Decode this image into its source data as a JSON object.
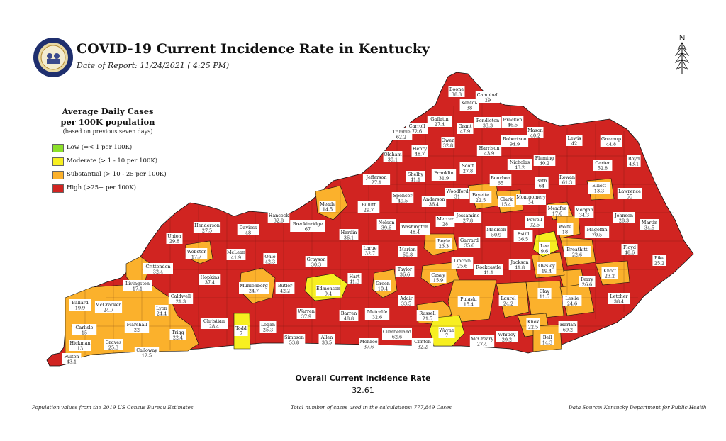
{
  "title": "COVID-19 Current Incidence Rate in Kentucky",
  "report_date": "Date of Report: 11/24/2021 ( 4:25 PM)",
  "north_label": "N",
  "legend": {
    "title_line1": "Average Daily Cases",
    "title_line2": "per 100K population",
    "note": "(based on previous seven days)",
    "items": [
      {
        "label": "Low (=< 1 per 100K)",
        "color": "#8ce02a"
      },
      {
        "label": "Moderate (> 1 - 10 per 100K)",
        "color": "#f7ef20"
      },
      {
        "label": "Substantial (> 10 - 25 per 100K)",
        "color": "#fbb12c"
      },
      {
        "label": "High (>25+ per 100K)",
        "color": "#d12421"
      }
    ]
  },
  "overall": {
    "label": "Overall Current Incidence Rate",
    "value": "32.61"
  },
  "footer": {
    "left": "Population values from the 2019 US Census Bureau Estimates",
    "middle": "Total number of cases used in the calculations: 777,849 Cases",
    "right": "Data Source: Kentucky Department for Public Health"
  },
  "counties": [
    {
      "name": "Boone",
      "rate": "38.3"
    },
    {
      "name": "Kenton",
      "rate": "38"
    },
    {
      "name": "Campbell",
      "rate": "29"
    },
    {
      "name": "Gallatin",
      "rate": "27.4"
    },
    {
      "name": "Carroll",
      "rate": "72.6"
    },
    {
      "name": "Trimble",
      "rate": "62.2"
    },
    {
      "name": "Grant",
      "rate": "47.9"
    },
    {
      "name": "Pendleton",
      "rate": "33.3"
    },
    {
      "name": "Bracken",
      "rate": "46.5"
    },
    {
      "name": "Robertson",
      "rate": "94.9"
    },
    {
      "name": "Mason",
      "rate": "40.2"
    },
    {
      "name": "Lewis",
      "rate": "42"
    },
    {
      "name": "Greenup",
      "rate": "44.8"
    },
    {
      "name": "Boyd",
      "rate": "43.1"
    },
    {
      "name": "Owen",
      "rate": "32.8"
    },
    {
      "name": "Henry",
      "rate": "48.7"
    },
    {
      "name": "Oldham",
      "rate": "39.1"
    },
    {
      "name": "Harrison",
      "rate": "43.9"
    },
    {
      "name": "Nicholas",
      "rate": "43.2"
    },
    {
      "name": "Fleming",
      "rate": "40.2"
    },
    {
      "name": "Carter",
      "rate": "52.8"
    },
    {
      "name": "Scott",
      "rate": "27.8"
    },
    {
      "name": "Franklin",
      "rate": "31.9"
    },
    {
      "name": "Shelby",
      "rate": "41.1"
    },
    {
      "name": "Jefferson",
      "rate": "27.1"
    },
    {
      "name": "Bourbon",
      "rate": "65"
    },
    {
      "name": "Bath",
      "rate": "64"
    },
    {
      "name": "Rowan",
      "rate": "61.3"
    },
    {
      "name": "Elliott",
      "rate": "13.3"
    },
    {
      "name": "Lawrence",
      "rate": "55"
    },
    {
      "name": "Woodford",
      "rate": "31"
    },
    {
      "name": "Fayette",
      "rate": "22.5"
    },
    {
      "name": "Anderson",
      "rate": "36.4"
    },
    {
      "name": "Spencer",
      "rate": "49.5"
    },
    {
      "name": "Bullitt",
      "rate": "29.7"
    },
    {
      "name": "Clark",
      "rate": "15.4"
    },
    {
      "name": "Montgomery",
      "rate": "34"
    },
    {
      "name": "Menifee",
      "rate": "17.6"
    },
    {
      "name": "Morgan",
      "rate": "34.3"
    },
    {
      "name": "Johnson",
      "rate": "28.3"
    },
    {
      "name": "Martin",
      "rate": "34.5"
    },
    {
      "name": "Meade",
      "rate": "14.5"
    },
    {
      "name": "Hancock",
      "rate": "32.8"
    },
    {
      "name": "Breckinridge",
      "rate": "67"
    },
    {
      "name": "Henderson",
      "rate": "27.5"
    },
    {
      "name": "Daviess",
      "rate": "48"
    },
    {
      "name": "Hardin",
      "rate": "36.1"
    },
    {
      "name": "Nelson",
      "rate": "39.6"
    },
    {
      "name": "Washington",
      "rate": "48.4"
    },
    {
      "name": "Mercer",
      "rate": "28"
    },
    {
      "name": "Jessamine",
      "rate": "27.8"
    },
    {
      "name": "Madison",
      "rate": "50.9"
    },
    {
      "name": "Powell",
      "rate": "92.5"
    },
    {
      "name": "Estill",
      "rate": "36.5"
    },
    {
      "name": "Wolfe",
      "rate": "18"
    },
    {
      "name": "Magoffin",
      "rate": "70.5"
    },
    {
      "name": "Floyd",
      "rate": "48.6"
    },
    {
      "name": "Pike",
      "rate": "25.2"
    },
    {
      "name": "Union",
      "rate": "29.8"
    },
    {
      "name": "Webster",
      "rate": "17.7"
    },
    {
      "name": "McLean",
      "rate": "41.9"
    },
    {
      "name": "Ohio",
      "rate": "42.3"
    },
    {
      "name": "Grayson",
      "rate": "30.3"
    },
    {
      "name": "Larue",
      "rate": "32.7"
    },
    {
      "name": "Marion",
      "rate": "60.8"
    },
    {
      "name": "Boyle",
      "rate": "23.3"
    },
    {
      "name": "Garrard",
      "rate": "35.6"
    },
    {
      "name": "Lee",
      "rate": "9.6"
    },
    {
      "name": "Breathitt",
      "rate": "22.6"
    },
    {
      "name": "Owsley",
      "rate": "19.4"
    },
    {
      "name": "Jackson",
      "rate": "41.8"
    },
    {
      "name": "Rockcastle",
      "rate": "41.1"
    },
    {
      "name": "Lincoln",
      "rate": "25.6"
    },
    {
      "name": "Knott",
      "rate": "23.2"
    },
    {
      "name": "Perry",
      "rate": "26.6"
    },
    {
      "name": "Crittenden",
      "rate": "32.4"
    },
    {
      "name": "Hopkins",
      "rate": "37.4"
    },
    {
      "name": "Muhlenberg",
      "rate": "24.7"
    },
    {
      "name": "Butler",
      "rate": "42.2"
    },
    {
      "name": "Edmonson",
      "rate": "9.4"
    },
    {
      "name": "Hart",
      "rate": "41.3"
    },
    {
      "name": "Taylor",
      "rate": "36.6"
    },
    {
      "name": "Green",
      "rate": "10.4"
    },
    {
      "name": "Casey",
      "rate": "15.9"
    },
    {
      "name": "Livingston",
      "rate": "17.1"
    },
    {
      "name": "Caldwell",
      "rate": "21.3"
    },
    {
      "name": "Lyon",
      "rate": "24.4"
    },
    {
      "name": "Ballard",
      "rate": "19.9"
    },
    {
      "name": "McCracken",
      "rate": "24.7"
    },
    {
      "name": "Marshall",
      "rate": "22"
    },
    {
      "name": "Carlisle",
      "rate": "15"
    },
    {
      "name": "Hickman",
      "rate": "13"
    },
    {
      "name": "Graves",
      "rate": "25.3"
    },
    {
      "name": "Fulton",
      "rate": "43.1"
    },
    {
      "name": "Calloway",
      "rate": "12.5"
    },
    {
      "name": "Trigg",
      "rate": "22.4"
    },
    {
      "name": "Christian",
      "rate": "28.4"
    },
    {
      "name": "Todd",
      "rate": "7"
    },
    {
      "name": "Logan",
      "rate": "25.3"
    },
    {
      "name": "Simpson",
      "rate": "53.8"
    },
    {
      "name": "Warren",
      "rate": "37.9"
    },
    {
      "name": "Allen",
      "rate": "33.5"
    },
    {
      "name": "Barren",
      "rate": "48.8"
    },
    {
      "name": "Metcalfe",
      "rate": "32.6"
    },
    {
      "name": "Monroe",
      "rate": "37.6"
    },
    {
      "name": "Cumberland",
      "rate": "62.6"
    },
    {
      "name": "Adair",
      "rate": "33.5"
    },
    {
      "name": "Russell",
      "rate": "21.5"
    },
    {
      "name": "Clinton",
      "rate": "32.2"
    },
    {
      "name": "Wayne",
      "rate": "7"
    },
    {
      "name": "Pulaski",
      "rate": "15.4"
    },
    {
      "name": "McCreary",
      "rate": "27.4"
    },
    {
      "name": "Laurel",
      "rate": "24.2"
    },
    {
      "name": "Whitley",
      "rate": "29.2"
    },
    {
      "name": "Clay",
      "rate": "11.5"
    },
    {
      "name": "Knox",
      "rate": "22.5"
    },
    {
      "name": "Bell",
      "rate": "14.3"
    },
    {
      "name": "Leslie",
      "rate": "24.6"
    },
    {
      "name": "Harlan",
      "rate": "69.2"
    },
    {
      "name": "Letcher",
      "rate": "38.4"
    }
  ]
}
